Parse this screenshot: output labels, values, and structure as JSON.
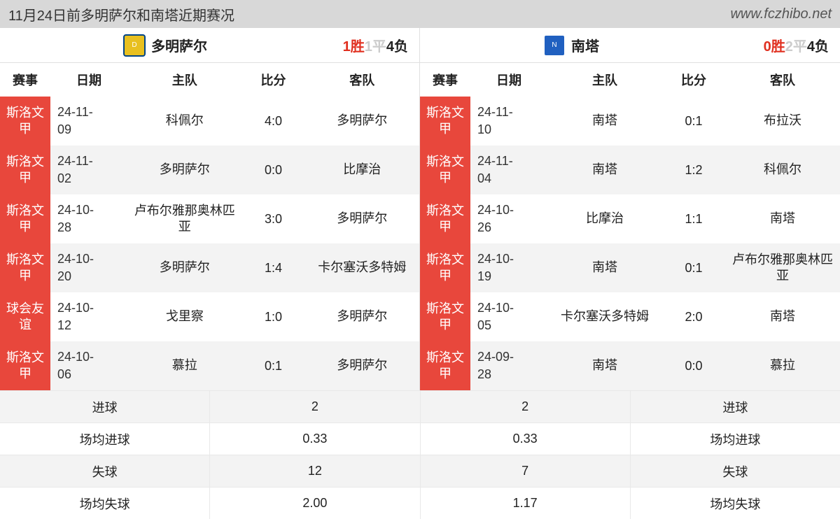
{
  "header": {
    "title": "11月24日前多明萨尔和南塔近期赛况",
    "url": "www.fczhibo.net"
  },
  "columns": {
    "league": "赛事",
    "date": "日期",
    "home": "主队",
    "score": "比分",
    "away": "客队"
  },
  "left": {
    "team": "多明萨尔",
    "record": {
      "win_n": "1",
      "win_lbl": "胜",
      "draw_n": "1",
      "draw_lbl": "平",
      "loss_n": "4",
      "loss_lbl": "负"
    },
    "rows": [
      {
        "league_l1": "斯洛文",
        "league_l2": "甲",
        "date_l1": "24-11-",
        "date_l2": "09",
        "home": "科佩尔",
        "score": "4:0",
        "away": "多明萨尔"
      },
      {
        "league_l1": "斯洛文",
        "league_l2": "甲",
        "date_l1": "24-11-",
        "date_l2": "02",
        "home": "多明萨尔",
        "score": "0:0",
        "away": "比摩治"
      },
      {
        "league_l1": "斯洛文",
        "league_l2": "甲",
        "date_l1": "24-10-",
        "date_l2": "28",
        "home": "卢布尔雅那奥林匹亚",
        "score": "3:0",
        "away": "多明萨尔"
      },
      {
        "league_l1": "斯洛文",
        "league_l2": "甲",
        "date_l1": "24-10-",
        "date_l2": "20",
        "home": "多明萨尔",
        "score": "1:4",
        "away": "卡尔塞沃多特姆"
      },
      {
        "league_l1": "球会友",
        "league_l2": "谊",
        "date_l1": "24-10-",
        "date_l2": "12",
        "home": "戈里察",
        "score": "1:0",
        "away": "多明萨尔"
      },
      {
        "league_l1": "斯洛文",
        "league_l2": "甲",
        "date_l1": "24-10-",
        "date_l2": "06",
        "home": "慕拉",
        "score": "0:1",
        "away": "多明萨尔"
      }
    ]
  },
  "right": {
    "team": "南塔",
    "record": {
      "win_n": "0",
      "win_lbl": "胜",
      "draw_n": "2",
      "draw_lbl": "平",
      "loss_n": "4",
      "loss_lbl": "负"
    },
    "rows": [
      {
        "league_l1": "斯洛文",
        "league_l2": "甲",
        "date_l1": "24-11-",
        "date_l2": "10",
        "home": "南塔",
        "score": "0:1",
        "away": "布拉沃"
      },
      {
        "league_l1": "斯洛文",
        "league_l2": "甲",
        "date_l1": "24-11-",
        "date_l2": "04",
        "home": "南塔",
        "score": "1:2",
        "away": "科佩尔"
      },
      {
        "league_l1": "斯洛文",
        "league_l2": "甲",
        "date_l1": "24-10-",
        "date_l2": "26",
        "home": "比摩治",
        "score": "1:1",
        "away": "南塔"
      },
      {
        "league_l1": "斯洛文",
        "league_l2": "甲",
        "date_l1": "24-10-",
        "date_l2": "19",
        "home": "南塔",
        "score": "0:1",
        "away": "卢布尔雅那奥林匹亚"
      },
      {
        "league_l1": "斯洛文",
        "league_l2": "甲",
        "date_l1": "24-10-",
        "date_l2": "05",
        "home": "卡尔塞沃多特姆",
        "score": "2:0",
        "away": "南塔"
      },
      {
        "league_l1": "斯洛文",
        "league_l2": "甲",
        "date_l1": "24-09-",
        "date_l2": "28",
        "home": "南塔",
        "score": "0:0",
        "away": "慕拉"
      }
    ]
  },
  "summary": {
    "labels": {
      "goals": "进球",
      "avg_goals": "场均进球",
      "conceded": "失球",
      "avg_conceded": "场均失球"
    },
    "left": {
      "goals": "2",
      "avg_goals": "0.33",
      "conceded": "12",
      "avg_conceded": "2.00"
    },
    "right": {
      "goals": "2",
      "avg_goals": "0.33",
      "conceded": "7",
      "avg_conceded": "1.17"
    }
  }
}
